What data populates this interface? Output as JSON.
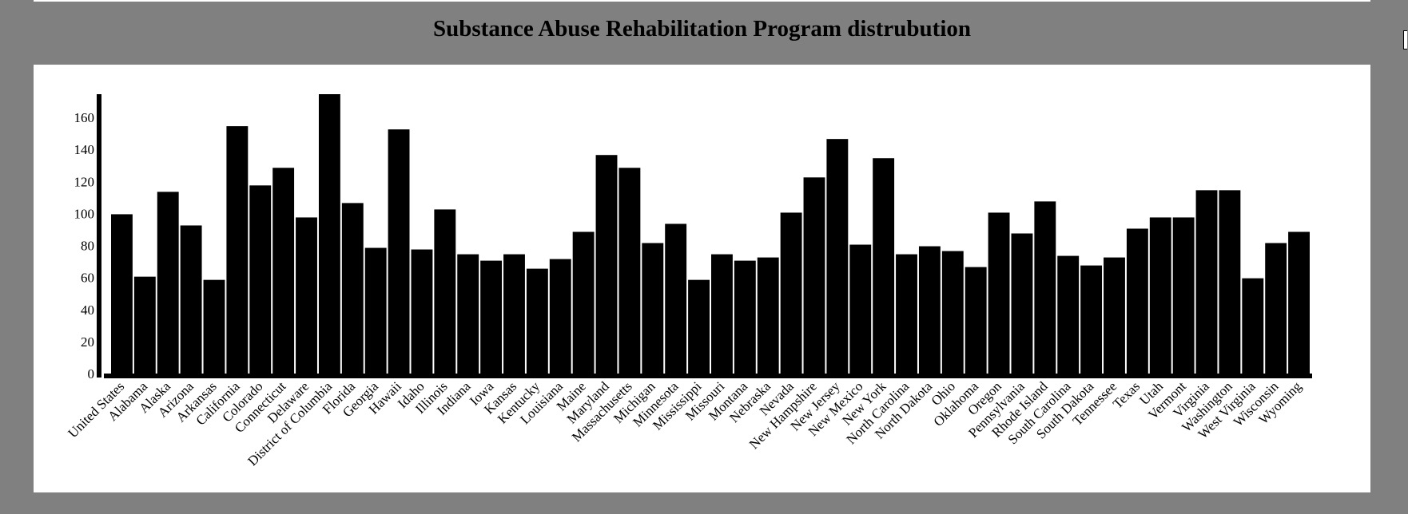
{
  "chart_data": {
    "type": "bar",
    "title": "Substance Abuse Rehabilitation Program distrubution",
    "xlabel": "",
    "ylabel": "",
    "ylim": [
      0,
      175
    ],
    "yticks": [
      0,
      20,
      40,
      60,
      80,
      100,
      120,
      140,
      160
    ],
    "grid": false,
    "bar_color": "#000000",
    "categories": [
      "United States",
      "Alabama",
      "Alaska",
      "Arizona",
      "Arkansas",
      "California",
      "Colorado",
      "Connecticut",
      "Delaware",
      "District of Columbia",
      "Florida",
      "Georgia",
      "Hawaii",
      "Idaho",
      "Illinois",
      "Indiana",
      "Iowa",
      "Kansas",
      "Kentucky",
      "Louisiana",
      "Maine",
      "Maryland",
      "Massachusetts",
      "Michigan",
      "Minnesota",
      "Mississippi",
      "Missouri",
      "Montana",
      "Nebraska",
      "Nevada",
      "New Hampshire",
      "New Jersey",
      "New Mexico",
      "New York",
      "North Carolina",
      "North Dakota",
      "Ohio",
      "Oklahoma",
      "Oregon",
      "Pennsylvania",
      "Rhode Island",
      "South Carolina",
      "South Dakota",
      "Tennessee",
      "Texas",
      "Utah",
      "Vermont",
      "Virginia",
      "Washington",
      "West Virginia",
      "Wisconsin",
      "Wyoming"
    ],
    "values": [
      100,
      61,
      114,
      93,
      59,
      155,
      118,
      129,
      98,
      175,
      107,
      79,
      153,
      78,
      103,
      75,
      71,
      75,
      66,
      72,
      89,
      137,
      129,
      82,
      94,
      59,
      75,
      71,
      73,
      101,
      123,
      147,
      81,
      135,
      75,
      80,
      77,
      67,
      101,
      88,
      108,
      74,
      68,
      73,
      91,
      98,
      98,
      115,
      115,
      60,
      82,
      89
    ]
  },
  "colors": {
    "page_background": "#808080",
    "panel_background": "#ffffff",
    "bars": "#000000"
  }
}
